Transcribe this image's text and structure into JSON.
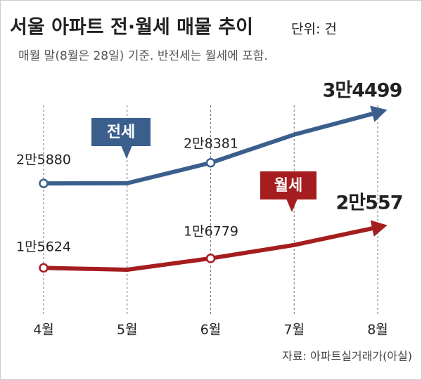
{
  "chart_data": {
    "type": "line",
    "title": "서울 아파트 전·월세 매물 추이",
    "unit": "단위: 건",
    "subtitle": "매월 말(8월은 28일) 기준. 반전세는 월세에 포함.",
    "source": "자료: 아파트실거래가(아실)",
    "categories": [
      "4월",
      "5월",
      "6월",
      "7월",
      "8월"
    ],
    "series": [
      {
        "name": "전세",
        "color": "#3b5f8c",
        "values": [
          25880,
          25900,
          28381,
          31800,
          34499
        ],
        "value_labels": [
          "2만5880",
          null,
          "2만8381",
          null,
          "3만4499"
        ]
      },
      {
        "name": "월세",
        "color": "#a51d1f",
        "values": [
          15624,
          15400,
          16779,
          18400,
          20557
        ],
        "value_labels": [
          "1만5624",
          null,
          "1만6779",
          null,
          "2만557"
        ]
      }
    ]
  }
}
